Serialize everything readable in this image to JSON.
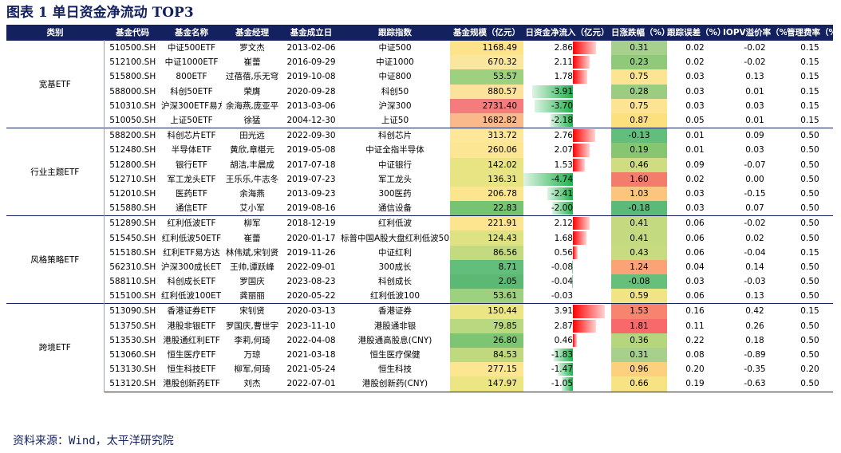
{
  "title": "图表 1  单日资金净流动 TOP3",
  "columns": [
    "类别",
    "基金代码",
    "基金名称",
    "基金经理",
    "基金成立日",
    "跟踪指数",
    "基金规模（亿元）",
    "日资金净流入（亿元）",
    "日涨跌幅（%）",
    "跟踪误差（%）",
    "IOPV溢价率（%）",
    "管理费率（%）"
  ],
  "source": "资料来源：Wind，太平洋研究院",
  "groups": [
    {
      "name": "宽基ETF",
      "rows": [
        {
          "code": "510500.SH",
          "name": "中证500ETF",
          "manager": "罗文杰",
          "date": "2013-02-06",
          "index": "中证500",
          "scale": "1168.49",
          "scale_color": "#fde38a",
          "flow": "2.86",
          "flow_value": 2.86,
          "chg": "0.31",
          "chg_color": "#a8d08d",
          "err": "0.02",
          "iopv": "-0.02",
          "fee": "0.15"
        },
        {
          "code": "512100.SH",
          "name": "中证1000ETF",
          "manager": "崔蕾",
          "date": "2016-09-29",
          "index": "中证1000",
          "scale": "670.32",
          "scale_color": "#fbe6a0",
          "flow": "2.11",
          "flow_value": 2.11,
          "chg": "0.23",
          "chg_color": "#8fc97a",
          "err": "0.02",
          "iopv": "-0.02",
          "fee": "0.15"
        },
        {
          "code": "515800.SH",
          "name": "800ETF",
          "manager": "过蓓蓓,乐无穹",
          "date": "2019-10-08",
          "index": "中证800",
          "scale": "53.57",
          "scale_color": "#9ed17f",
          "flow": "1.78",
          "flow_value": 1.78,
          "chg": "0.75",
          "chg_color": "#fde493",
          "err": "0.03",
          "iopv": "0.13",
          "fee": "0.15"
        },
        {
          "code": "588000.SH",
          "name": "科创50ETF",
          "manager": "荣膺",
          "date": "2020-09-28",
          "index": "科创50",
          "scale": "880.57",
          "scale_color": "#fbe39b",
          "flow": "-3.91",
          "flow_value": -3.91,
          "chg": "0.28",
          "chg_color": "#9ccc82",
          "err": "0.03",
          "iopv": "0.01",
          "fee": "0.15"
        },
        {
          "code": "510310.SH",
          "name": "沪深300ETF易方达",
          "manager": "余海燕,庞亚平",
          "date": "2013-03-06",
          "index": "沪深300",
          "scale": "2731.40",
          "scale_color": "#f47c7c",
          "flow": "-3.70",
          "flow_value": -3.7,
          "chg": "0.75",
          "chg_color": "#fde493",
          "err": "0.03",
          "iopv": "0.03",
          "fee": "0.15"
        },
        {
          "code": "510050.SH",
          "name": "上证50ETF",
          "manager": "徐猛",
          "date": "2004-12-30",
          "index": "上证50",
          "scale": "1682.82",
          "scale_color": "#f9b98b",
          "flow": "-2.18",
          "flow_value": -2.18,
          "chg": "0.87",
          "chg_color": "#fde07e",
          "err": "0.05",
          "iopv": "0.01",
          "fee": "0.15"
        }
      ]
    },
    {
      "name": "行业主题ETF",
      "rows": [
        {
          "code": "588200.SH",
          "name": "科创芯片ETF",
          "manager": "田光远",
          "date": "2022-09-30",
          "index": "科创芯片",
          "scale": "313.72",
          "scale_color": "#fde89a",
          "flow": "2.76",
          "flow_value": 2.76,
          "chg": "-0.13",
          "chg_color": "#63be7b",
          "err": "0.01",
          "iopv": "0.09",
          "fee": "0.50"
        },
        {
          "code": "512480.SH",
          "name": "半导体ETF",
          "manager": "黄欣,章椹元",
          "date": "2019-05-08",
          "index": "中证全指半导体",
          "scale": "260.06",
          "scale_color": "#fde693",
          "flow": "2.07",
          "flow_value": 2.07,
          "chg": "0.19",
          "chg_color": "#86c671",
          "err": "0.01",
          "iopv": "0.03",
          "fee": "0.50"
        },
        {
          "code": "512800.SH",
          "name": "银行ETF",
          "manager": "胡洁,丰晨成",
          "date": "2017-07-18",
          "index": "中证银行",
          "scale": "142.02",
          "scale_color": "#e8e483",
          "flow": "1.53",
          "flow_value": 1.53,
          "chg": "0.46",
          "chg_color": "#cfdc82",
          "err": "0.09",
          "iopv": "-0.07",
          "fee": "0.50"
        },
        {
          "code": "512710.SH",
          "name": "军工龙头ETF",
          "manager": "王乐乐,牛志冬",
          "date": "2019-07-23",
          "index": "军工龙头",
          "scale": "136.31",
          "scale_color": "#e6e483",
          "flow": "-4.74",
          "flow_value": -4.74,
          "chg": "1.60",
          "chg_color": "#f47c6c",
          "err": "0.02",
          "iopv": "0.00",
          "fee": "0.50"
        },
        {
          "code": "512010.SH",
          "name": "医药ETF",
          "manager": "余海燕",
          "date": "2013-09-23",
          "index": "300医药",
          "scale": "206.78",
          "scale_color": "#fbe58e",
          "flow": "-2.41",
          "flow_value": -2.41,
          "chg": "1.03",
          "chg_color": "#fcc57e",
          "err": "0.03",
          "iopv": "-0.15",
          "fee": "0.50"
        },
        {
          "code": "515880.SH",
          "name": "通信ETF",
          "manager": "艾小军",
          "date": "2019-08-16",
          "index": "通信设备",
          "scale": "22.83",
          "scale_color": "#76c372",
          "flow": "-2.00",
          "flow_value": -2.0,
          "chg": "-0.18",
          "chg_color": "#5cba79",
          "err": "0.03",
          "iopv": "0.07",
          "fee": "0.50"
        }
      ]
    },
    {
      "name": "风格策略ETF",
      "rows": [
        {
          "code": "512890.SH",
          "name": "红利低波ETF",
          "manager": "柳军",
          "date": "2018-12-19",
          "index": "红利低波",
          "scale": "221.91",
          "scale_color": "#fde48f",
          "flow": "2.12",
          "flow_value": 2.12,
          "chg": "0.41",
          "chg_color": "#c4da80",
          "err": "0.06",
          "iopv": "-0.02",
          "fee": "0.50"
        },
        {
          "code": "515450.SH",
          "name": "红利低波50ETF",
          "manager": "崔蕾",
          "date": "2020-01-17",
          "index": "标普中国A股大盘红利低波50",
          "scale": "124.43",
          "scale_color": "#dfe283",
          "flow": "1.68",
          "flow_value": 1.68,
          "chg": "0.41",
          "chg_color": "#c4da80",
          "err": "0.06",
          "iopv": "0.02",
          "fee": "0.50"
        },
        {
          "code": "515180.SH",
          "name": "红利ETF易方达",
          "manager": "林伟斌,宋钊贤",
          "date": "2019-11-26",
          "index": "中证红利",
          "scale": "86.56",
          "scale_color": "#c4da80",
          "flow": "0.56",
          "flow_value": 0.56,
          "chg": "0.43",
          "chg_color": "#c8db81",
          "err": "0.06",
          "iopv": "-0.04",
          "fee": "0.15"
        },
        {
          "code": "562310.SH",
          "name": "沪深300成长ETF",
          "manager": "王帅,谭跃峰",
          "date": "2022-09-01",
          "index": "300成长",
          "scale": "8.71",
          "scale_color": "#63be7b",
          "flow": "-0.08",
          "flow_value": -0.08,
          "chg": "1.24",
          "chg_color": "#fba276",
          "err": "0.04",
          "iopv": "0.14",
          "fee": "0.50"
        },
        {
          "code": "588110.SH",
          "name": "科创成长ETF",
          "manager": "罗国庆",
          "date": "2023-08-23",
          "index": "科创成长",
          "scale": "2.05",
          "scale_color": "#5bb974",
          "flow": "-0.04",
          "flow_value": -0.04,
          "chg": "-0.08",
          "chg_color": "#66bf7a",
          "err": "0.03",
          "iopv": "-0.03",
          "fee": "0.50"
        },
        {
          "code": "515100.SH",
          "name": "红利低波100ETF",
          "manager": "龚丽丽",
          "date": "2020-05-22",
          "index": "红利低波100",
          "scale": "53.61",
          "scale_color": "#9ed17f",
          "flow": "-0.03",
          "flow_value": -0.03,
          "chg": "0.59",
          "chg_color": "#f0e484",
          "err": "0.06",
          "iopv": "0.13",
          "fee": "0.50"
        }
      ]
    },
    {
      "name": "跨境ETF",
      "rows": [
        {
          "code": "513090.SH",
          "name": "香港证券ETF",
          "manager": "宋钊贤",
          "date": "2020-03-13",
          "index": "香港证券",
          "scale": "150.44",
          "scale_color": "#ece583",
          "flow": "3.91",
          "flow_value": 3.91,
          "chg": "1.53",
          "chg_color": "#f6846e",
          "err": "0.16",
          "iopv": "0.42",
          "fee": "0.15"
        },
        {
          "code": "513750.SH",
          "name": "港股非银ETF",
          "manager": "罗国庆,曹世宇",
          "date": "2023-11-10",
          "index": "港股通非银",
          "scale": "79.85",
          "scale_color": "#bad87f",
          "flow": "2.87",
          "flow_value": 2.87,
          "chg": "1.81",
          "chg_color": "#f8696b",
          "err": "0.11",
          "iopv": "0.26",
          "fee": "0.50"
        },
        {
          "code": "513530.SH",
          "name": "港股通红利ETF",
          "manager": "李莉,何琦",
          "date": "2022-04-08",
          "index": "港股通高股息(CNY)",
          "scale": "26.80",
          "scale_color": "#7bc573",
          "flow": "0.46",
          "flow_value": 0.46,
          "chg": "0.36",
          "chg_color": "#b6d67e",
          "err": "0.22",
          "iopv": "0.18",
          "fee": "0.50"
        },
        {
          "code": "513060.SH",
          "name": "恒生医疗ETF",
          "manager": "万琼",
          "date": "2021-03-18",
          "index": "恒生医疗保健",
          "scale": "84.53",
          "scale_color": "#c0d97f",
          "flow": "-1.83",
          "flow_value": -1.83,
          "chg": "0.31",
          "chg_color": "#a8d08d",
          "err": "0.08",
          "iopv": "-0.89",
          "fee": "0.50"
        },
        {
          "code": "513130.SH",
          "name": "恒生科技ETF",
          "manager": "柳军,何琦",
          "date": "2021-05-24",
          "index": "恒生科技",
          "scale": "277.15",
          "scale_color": "#fde692",
          "flow": "-1.47",
          "flow_value": -1.47,
          "chg": "0.96",
          "chg_color": "#fdd07f",
          "err": "0.20",
          "iopv": "-0.35",
          "fee": "0.20"
        },
        {
          "code": "513120.SH",
          "name": "港股创新药ETF",
          "manager": "刘杰",
          "date": "2022-07-01",
          "index": "港股创新药(CNY)",
          "scale": "147.97",
          "scale_color": "#ebe583",
          "flow": "-1.05",
          "flow_value": -1.05,
          "chg": "0.66",
          "chg_color": "#f7e384",
          "err": "0.19",
          "iopv": "-0.63",
          "fee": "0.50"
        }
      ]
    }
  ]
}
